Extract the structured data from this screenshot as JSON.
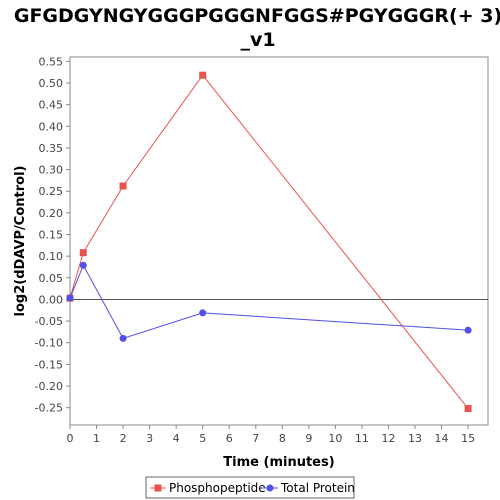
{
  "chart_data": {
    "type": "line",
    "title": "GFGDGYNGYGGGPGGGNFGGS#PGYGGGR(+ 3)",
    "title_line2": "_v1",
    "xlabel": "Time (minutes)",
    "ylabel": "log2(dDAVP/Control)",
    "xlim": [
      0,
      15.75
    ],
    "ylim": [
      -0.29,
      0.56
    ],
    "xticks": [
      0,
      1,
      2,
      3,
      4,
      5,
      6,
      7,
      8,
      9,
      10,
      11,
      12,
      13,
      14,
      15
    ],
    "xtick_labels": [
      "0",
      "1",
      "2",
      "3",
      "4",
      "5",
      "6",
      "7",
      "8",
      "9",
      "10",
      "11",
      "12",
      "13",
      "14",
      "15"
    ],
    "yticks": [
      -0.25,
      -0.2,
      -0.15,
      -0.1,
      -0.05,
      0.0,
      0.05,
      0.1,
      0.15,
      0.2,
      0.25,
      0.3,
      0.35,
      0.4,
      0.45,
      0.5,
      0.55
    ],
    "ytick_labels": [
      "-0.25",
      "-0.20",
      "-0.15",
      "-0.10",
      "-0.05",
      "0.00",
      "0.05",
      "0.10",
      "0.15",
      "0.20",
      "0.25",
      "0.30",
      "0.35",
      "0.40",
      "0.45",
      "0.50",
      "0.55"
    ],
    "grid": false,
    "zero_line": true,
    "legend_position": "bottom",
    "series": [
      {
        "name": "Phosphopeptide",
        "color": "#e8534f",
        "marker": "square",
        "x": [
          0,
          0.5,
          2,
          5,
          15
        ],
        "y": [
          0.003,
          0.108,
          0.262,
          0.518,
          -0.252
        ]
      },
      {
        "name": "Total Protein",
        "color": "#5050e8",
        "marker": "circle",
        "x": [
          0,
          0.5,
          2,
          5,
          15
        ],
        "y": [
          0.003,
          0.079,
          -0.09,
          -0.031,
          -0.071
        ]
      }
    ]
  }
}
